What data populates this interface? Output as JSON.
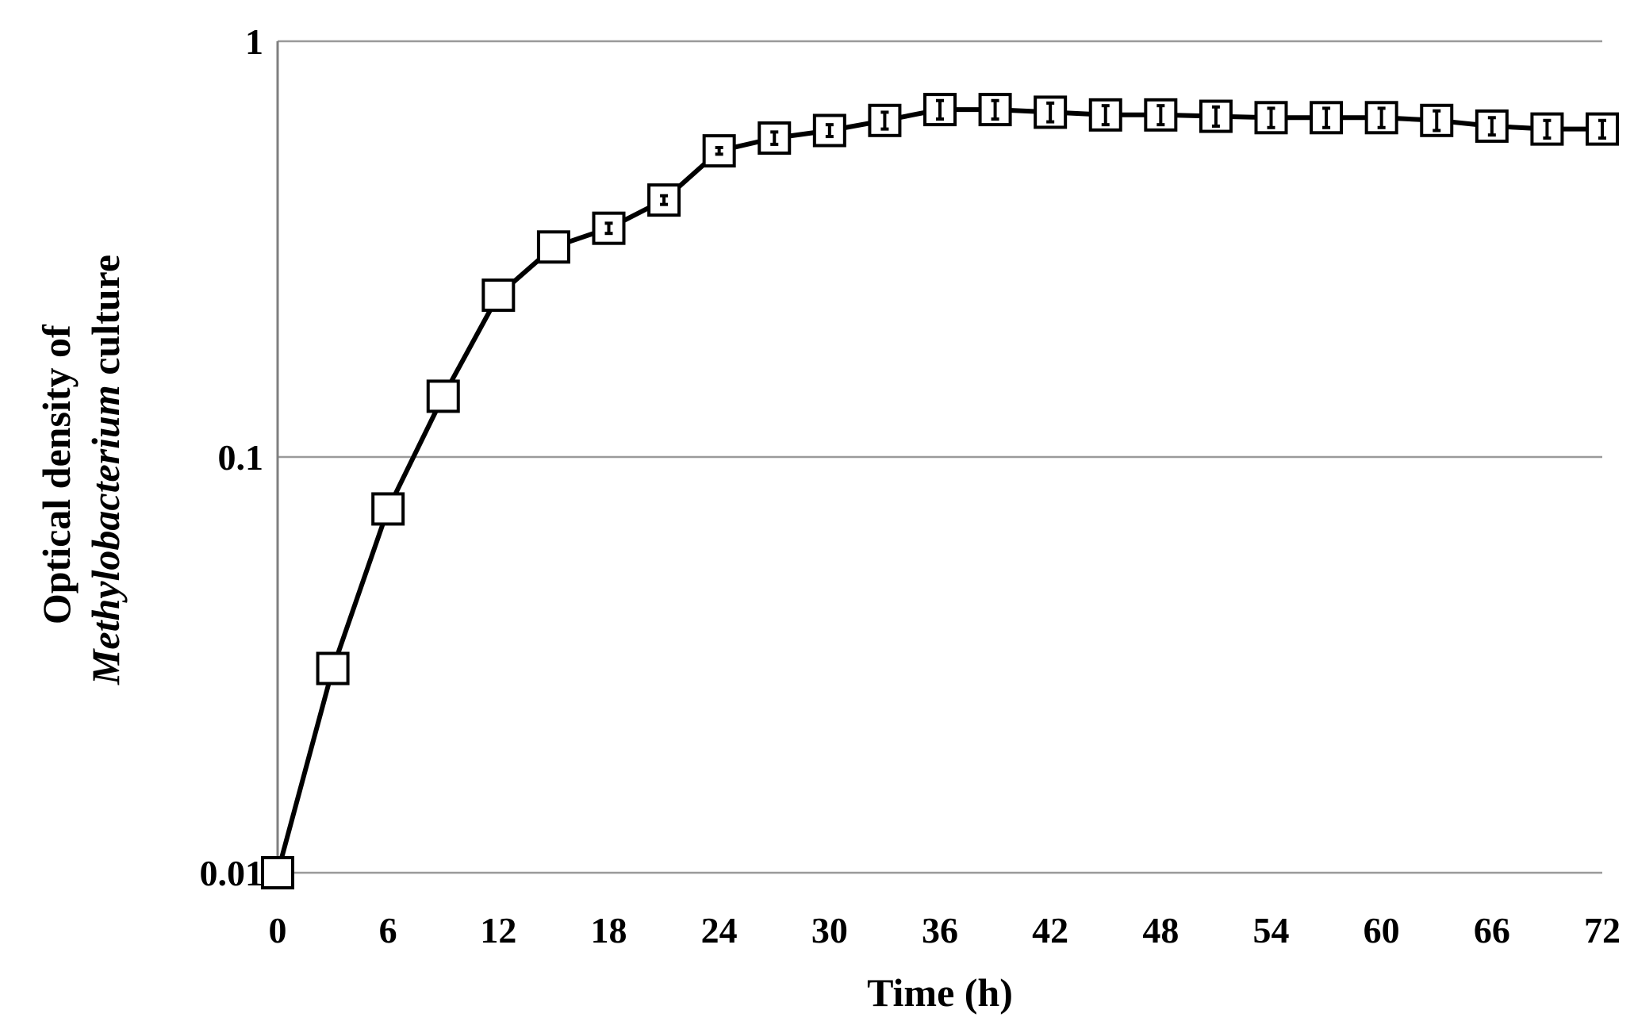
{
  "chart_data": {
    "type": "line",
    "title": "",
    "xlabel": "Time (h)",
    "ylabel_line1": "Optical  density of",
    "ylabel_line2_italic": "Methylobacterium",
    "ylabel_line2_rest": " culture",
    "y_scale": "log",
    "ylim": [
      0.01,
      1
    ],
    "y_ticks": [
      "0.01",
      "0.1",
      "1"
    ],
    "xlim": [
      0,
      72
    ],
    "x_ticks": [
      "0",
      "6",
      "12",
      "18",
      "24",
      "30",
      "36",
      "42",
      "48",
      "54",
      "60",
      "66",
      "72"
    ],
    "grid": "horizontal",
    "legend": "none",
    "marker": "open-square",
    "series": [
      {
        "x": [
          0,
          3,
          6,
          9,
          12,
          15,
          18,
          21,
          24,
          27,
          30,
          33,
          36,
          39,
          42,
          45,
          48,
          51,
          54,
          57,
          60,
          63,
          66,
          69,
          72
        ],
        "values": [
          0.01,
          0.031,
          0.075,
          0.14,
          0.245,
          0.32,
          0.355,
          0.415,
          0.545,
          0.585,
          0.61,
          0.645,
          0.685,
          0.685,
          0.675,
          0.665,
          0.665,
          0.66,
          0.655,
          0.655,
          0.655,
          0.645,
          0.625,
          0.615,
          0.615
        ],
        "error": [
          0,
          0,
          0,
          0,
          0,
          0,
          0.01,
          0.01,
          0.01,
          0.02,
          0.02,
          0.03,
          0.035,
          0.035,
          0.035,
          0.035,
          0.035,
          0.035,
          0.035,
          0.035,
          0.035,
          0.035,
          0.03,
          0.03,
          0.03
        ]
      }
    ]
  }
}
